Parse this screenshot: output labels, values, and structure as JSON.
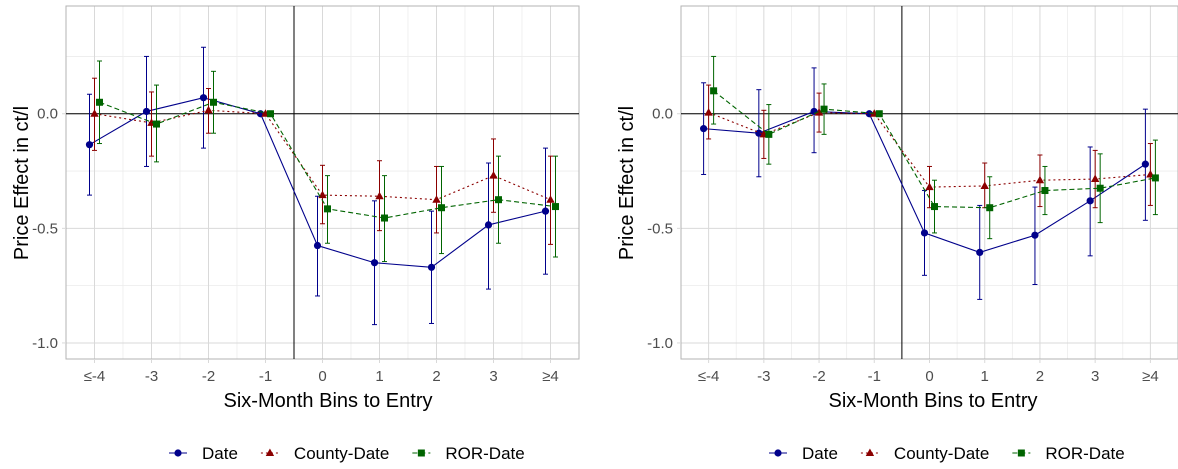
{
  "colors": {
    "date": "#00008b",
    "county_date": "#8b0000",
    "ror_date": "#006400",
    "grid_major": "#d9d9d9",
    "grid_minor": "#ececec",
    "panel_border": "#b3b3b3",
    "reference_line": "#000000"
  },
  "chart_data": [
    {
      "type": "line",
      "title": "",
      "xlabel": "Six-Month Bins to Entry",
      "ylabel": "Price Effect in ct/l",
      "categories": [
        "≤-4",
        "-3",
        "-2",
        "-1",
        "0",
        "1",
        "2",
        "3",
        "≥4"
      ],
      "y_ticks": [
        "-1.0",
        "-0.5",
        "0.0"
      ],
      "ylim": [
        -1.07,
        0.47
      ],
      "grid": true,
      "legend_position": "bottom",
      "reference_lines": {
        "horizontal_at": 0,
        "vertical_between": [
          "-1",
          "0"
        ]
      },
      "series": [
        {
          "name": "Date",
          "marker": "circle",
          "line_style": "solid",
          "values": [
            -0.135,
            0.01,
            0.07,
            0.0,
            -0.575,
            -0.65,
            -0.67,
            -0.485,
            -0.425
          ],
          "ci_low": [
            -0.355,
            -0.23,
            -0.15,
            0.0,
            -0.795,
            -0.92,
            -0.915,
            -0.765,
            -0.7
          ],
          "ci_high": [
            0.085,
            0.25,
            0.29,
            0.0,
            -0.36,
            -0.38,
            -0.425,
            -0.215,
            -0.15
          ]
        },
        {
          "name": "County-Date",
          "marker": "triangle",
          "line_style": "dotted",
          "values": [
            0.0,
            -0.04,
            0.015,
            0.0,
            -0.355,
            -0.36,
            -0.375,
            -0.27,
            -0.375
          ],
          "ci_low": [
            -0.16,
            -0.185,
            -0.085,
            0.0,
            -0.48,
            -0.51,
            -0.52,
            -0.43,
            -0.57
          ],
          "ci_high": [
            0.155,
            0.095,
            0.11,
            0.0,
            -0.225,
            -0.205,
            -0.23,
            -0.11,
            -0.185
          ]
        },
        {
          "name": "ROR-Date",
          "marker": "square",
          "line_style": "dashed",
          "values": [
            0.05,
            -0.045,
            0.05,
            0.0,
            -0.415,
            -0.455,
            -0.41,
            -0.375,
            -0.405
          ],
          "ci_low": [
            -0.13,
            -0.21,
            -0.085,
            0.0,
            -0.565,
            -0.645,
            -0.61,
            -0.565,
            -0.625
          ],
          "ci_high": [
            0.23,
            0.125,
            0.185,
            0.0,
            -0.27,
            -0.27,
            -0.23,
            -0.185,
            -0.185
          ]
        }
      ]
    },
    {
      "type": "line",
      "title": "",
      "xlabel": "Six-Month Bins to Entry",
      "ylabel": "Price Effect in ct/l",
      "categories": [
        "≤-4",
        "-3",
        "-2",
        "-1",
        "0",
        "1",
        "2",
        "3",
        "≥4"
      ],
      "y_ticks": [
        "-1.0",
        "-0.5",
        "0.0"
      ],
      "ylim": [
        -1.07,
        0.47
      ],
      "grid": true,
      "legend_position": "bottom",
      "reference_lines": {
        "horizontal_at": 0,
        "vertical_between": [
          "-1",
          "0"
        ]
      },
      "series": [
        {
          "name": "Date",
          "marker": "circle",
          "line_style": "solid",
          "values": [
            -0.065,
            -0.085,
            0.01,
            0.0,
            -0.52,
            -0.605,
            -0.53,
            -0.38,
            -0.22
          ],
          "ci_low": [
            -0.265,
            -0.275,
            -0.17,
            0.0,
            -0.705,
            -0.81,
            -0.745,
            -0.62,
            -0.465
          ],
          "ci_high": [
            0.135,
            0.105,
            0.2,
            0.0,
            -0.335,
            -0.4,
            -0.32,
            -0.145,
            0.02
          ]
        },
        {
          "name": "County-Date",
          "marker": "triangle",
          "line_style": "dotted",
          "values": [
            0.005,
            -0.09,
            0.005,
            0.0,
            -0.32,
            -0.315,
            -0.29,
            -0.285,
            -0.265
          ],
          "ci_low": [
            -0.11,
            -0.195,
            -0.08,
            0.0,
            -0.41,
            -0.41,
            -0.405,
            -0.41,
            -0.4
          ],
          "ci_high": [
            0.125,
            0.015,
            0.09,
            0.0,
            -0.23,
            -0.215,
            -0.18,
            -0.16,
            -0.13
          ]
        },
        {
          "name": "ROR-Date",
          "marker": "square",
          "line_style": "dashed",
          "values": [
            0.1,
            -0.09,
            0.02,
            0.0,
            -0.405,
            -0.41,
            -0.335,
            -0.325,
            -0.28
          ],
          "ci_low": [
            -0.045,
            -0.22,
            -0.09,
            0.0,
            -0.52,
            -0.545,
            -0.44,
            -0.475,
            -0.44
          ],
          "ci_high": [
            0.25,
            0.04,
            0.13,
            0.0,
            -0.29,
            -0.275,
            -0.23,
            -0.175,
            -0.115
          ]
        }
      ]
    }
  ]
}
